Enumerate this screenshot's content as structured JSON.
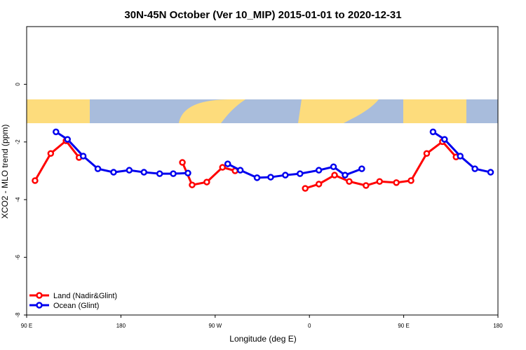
{
  "chart_data": {
    "type": "line",
    "title": "30N-45N October (Ver 10_MIP)   2015-01-01 to 2020-12-31",
    "x_label": "Longitude (deg E)",
    "y_label": "XCO2 - MLO trend (ppm)",
    "xlim": [
      90,
      540
    ],
    "xticks": [
      {
        "value": 90,
        "label": "90 E"
      },
      180,
      {
        "value": 270,
        "label": "90 W"
      },
      {
        "value": 360,
        "label": "0"
      },
      {
        "value": 450,
        "label": "90 E"
      },
      {
        "value": 540,
        "label": "180"
      }
    ],
    "ylim": [
      -8,
      2
    ],
    "yticks": [
      0,
      -2,
      -4,
      -6,
      -8
    ],
    "legend": "bottom-left",
    "series": [
      {
        "name": "Land (Nadir&Glint)",
        "color": "#ff0000",
        "x": [
          98,
          113,
          127.6,
          140,
          null,
          238.7,
          248,
          262,
          277,
          289,
          null,
          356,
          369,
          384,
          398,
          414,
          427,
          443,
          457,
          472,
          487,
          500
        ],
        "values": [
          -3.34,
          -2.4,
          -1.96,
          -2.54,
          null,
          -2.71,
          -3.49,
          -3.39,
          -2.88,
          -3.0,
          null,
          -3.61,
          -3.46,
          -3.15,
          -3.37,
          -3.51,
          -3.37,
          -3.41,
          -3.34,
          -2.4,
          -1.99,
          -2.52
        ]
      },
      {
        "name": "Ocean (Glint)",
        "color": "#0000ee",
        "x": [
          118,
          129,
          144,
          158,
          173,
          188,
          202,
          217,
          230,
          244,
          null,
          282,
          294,
          310,
          323,
          337,
          351,
          369,
          383,
          394,
          410,
          null,
          478,
          489,
          504,
          518,
          533
        ],
        "values": [
          -1.65,
          -1.91,
          -2.49,
          -2.93,
          -3.05,
          -2.98,
          -3.05,
          -3.1,
          -3.1,
          -3.08,
          null,
          -2.76,
          -2.98,
          -3.24,
          -3.22,
          -3.15,
          -3.1,
          -2.98,
          -2.86,
          -3.15,
          -2.93,
          null,
          -1.65,
          -1.91,
          -2.49,
          -2.93,
          -3.05
        ]
      }
    ]
  }
}
